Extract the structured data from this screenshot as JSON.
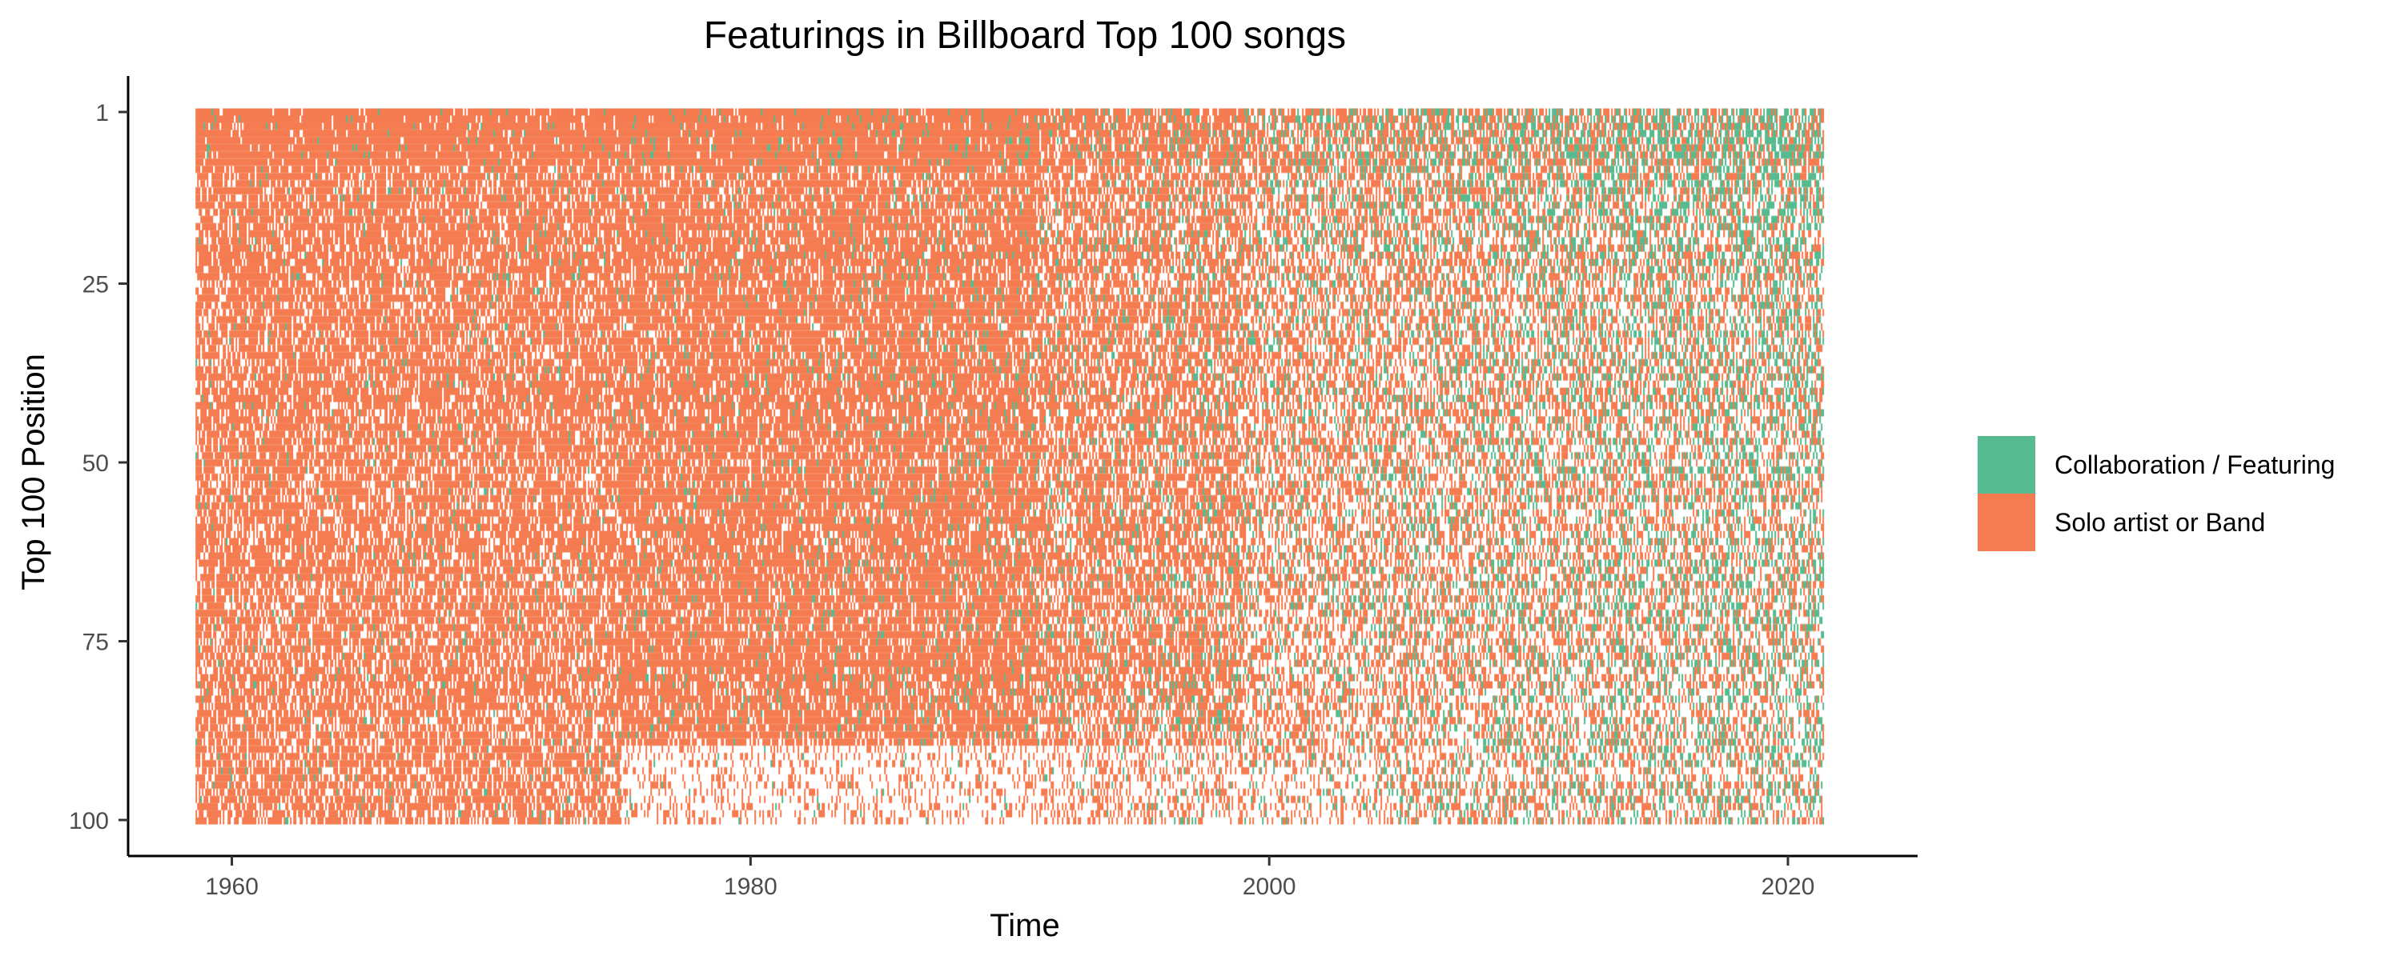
{
  "chart_data": {
    "type": "heatmap",
    "title": "Featurings in Billboard Top 100 songs",
    "xlabel": "Time",
    "ylabel": "Top 100 Position",
    "x_tick_labels": [
      "1960",
      "1980",
      "2000",
      "2020"
    ],
    "x_ticks": [
      1960,
      1980,
      2000,
      2020
    ],
    "y_tick_labels": [
      "1",
      "25",
      "50",
      "75",
      "100"
    ],
    "y_ticks": [
      1,
      25,
      50,
      75,
      100
    ],
    "xlim": [
      1956,
      2025
    ],
    "ylim": [
      100,
      1
    ],
    "y_reversed": true,
    "data_range": {
      "x": [
        1958.6,
        2021.4
      ],
      "y": [
        1,
        100
      ]
    },
    "legend": {
      "placement": "right",
      "entries": [
        {
          "label": "Collaboration / Featuring",
          "color": "#57BB8F"
        },
        {
          "label": "Solo artist or Band",
          "color": "#F47C50"
        }
      ]
    },
    "collaboration_share_by_year": [
      {
        "year": 1960,
        "share": 0.02
      },
      {
        "year": 1970,
        "share": 0.03
      },
      {
        "year": 1980,
        "share": 0.04
      },
      {
        "year": 1990,
        "share": 0.07
      },
      {
        "year": 2000,
        "share": 0.18
      },
      {
        "year": 2010,
        "share": 0.3
      },
      {
        "year": 2021,
        "share": 0.42
      }
    ],
    "grid": false
  }
}
